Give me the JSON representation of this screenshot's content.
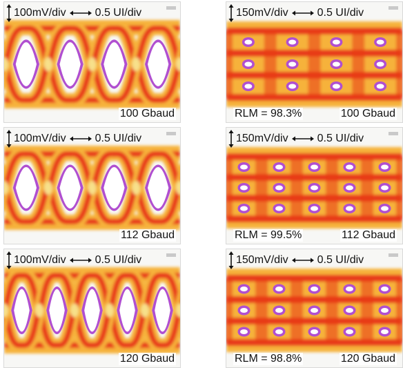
{
  "colors": {
    "background": "#f7f7f5",
    "eye_outer": "#f6b23a",
    "eye_core": "#e83b1a",
    "eye_peak": "#f7e08a",
    "eye_edge": "#b04fd0",
    "eye_opening": "#ffffff"
  },
  "panels": [
    {
      "id": "left-100",
      "scale_v": "100mV/div",
      "scale_h": "0.5 UI/div",
      "rate": "100 Gbaud",
      "rlm": "",
      "format": "NRZ",
      "eyes": 4
    },
    {
      "id": "right-100",
      "scale_v": "150mV/div",
      "scale_h": "0.5 UI/div",
      "rate": "100 Gbaud",
      "rlm": "RLM = 98.3%",
      "format": "PAM4",
      "eyes": 4
    },
    {
      "id": "left-112",
      "scale_v": "100mV/div",
      "scale_h": "0.5 UI/div",
      "rate": "112 Gbaud",
      "rlm": "",
      "format": "NRZ",
      "eyes": 4
    },
    {
      "id": "right-112",
      "scale_v": "150mV/div",
      "scale_h": "0.5 UI/div",
      "rate": "112 Gbaud",
      "rlm": "RLM = 99.5%",
      "format": "PAM4",
      "eyes": 5
    },
    {
      "id": "left-120",
      "scale_v": "100mV/div",
      "scale_h": "0.5 UI/div",
      "rate": "120 Gbaud",
      "rlm": "",
      "format": "NRZ",
      "eyes": 5
    },
    {
      "id": "right-120",
      "scale_v": "150mV/div",
      "scale_h": "0.5 UI/div",
      "rate": "120 Gbaud",
      "rlm": "RLM = 98.8%",
      "format": "PAM4",
      "eyes": 5
    }
  ]
}
